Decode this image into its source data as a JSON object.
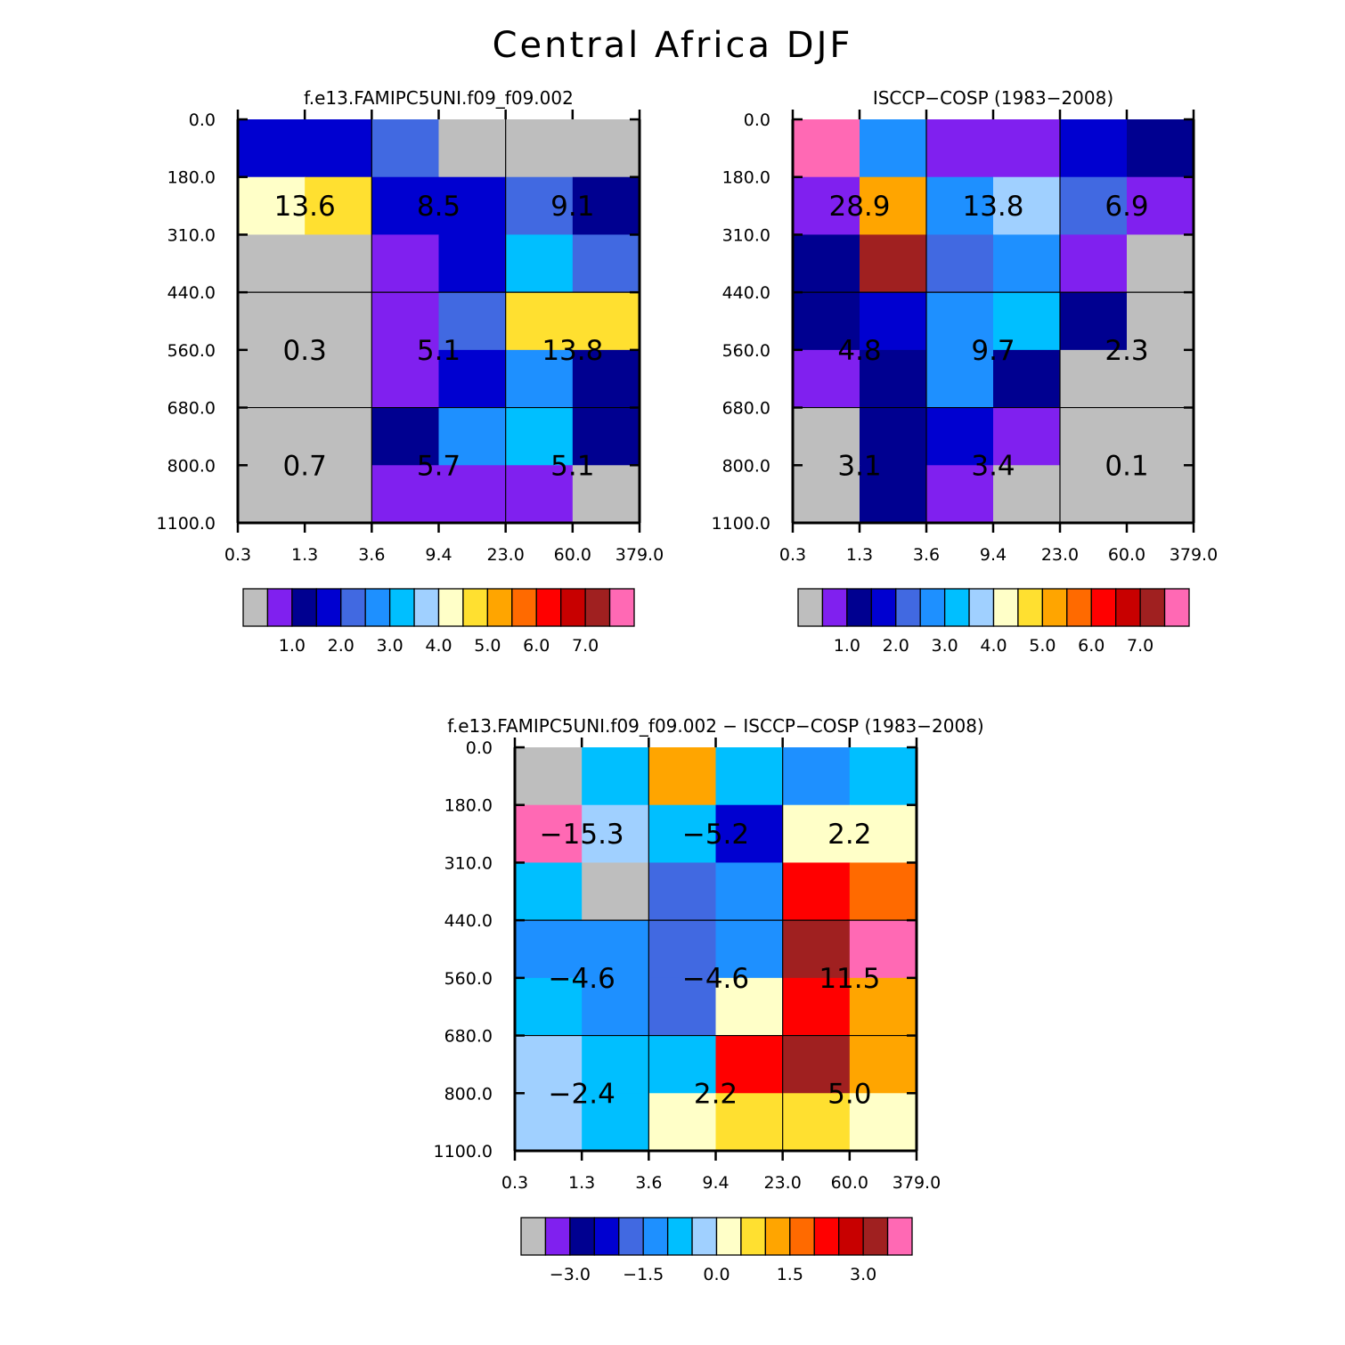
{
  "title": "Central Africa DJF",
  "colors": {
    "palette": [
      "#bebebe",
      "#8020ef",
      "#000090",
      "#0000d0",
      "#4169e1",
      "#1e90ff",
      "#00bfff",
      "#a0d0ff",
      "#ffffc8",
      "#ffe030",
      "#ffa500",
      "#ff6a00",
      "#ff0000",
      "#c80000",
      "#a02020",
      "#ff69b4"
    ]
  },
  "chart_data": [
    {
      "type": "heatmap",
      "id": "model",
      "title": "f.e13.FAMIPC5UNI.f09_f09.002",
      "xlabel": "",
      "ylabel": "",
      "x_ticks": [
        "0.3",
        "1.3",
        "3.6",
        "9.4",
        "23.0",
        "60.0",
        "379.0"
      ],
      "y_ticks": [
        "0.0",
        "180.0",
        "310.0",
        "440.0",
        "560.0",
        "680.0",
        "800.0",
        "1100.0"
      ],
      "cell_color_index": [
        [
          3,
          3,
          4,
          0,
          0,
          0
        ],
        [
          8,
          9,
          3,
          3,
          4,
          2
        ],
        [
          0,
          0,
          1,
          3,
          6,
          4
        ],
        [
          0,
          0,
          1,
          4,
          9,
          9
        ],
        [
          0,
          0,
          1,
          3,
          5,
          2
        ],
        [
          0,
          0,
          2,
          5,
          6,
          2
        ],
        [
          0,
          0,
          1,
          1,
          1,
          0
        ]
      ],
      "block_labels": [
        [
          "13.6",
          "8.5",
          "9.1"
        ],
        [
          "0.3",
          "5.1",
          "13.8"
        ],
        [
          "0.7",
          "5.7",
          "5.1"
        ]
      ],
      "colorbar_labels": [
        "1.0",
        "2.0",
        "3.0",
        "4.0",
        "5.0",
        "6.0",
        "7.0"
      ]
    },
    {
      "type": "heatmap",
      "id": "obs",
      "title": "ISCCP-COSP (1983-2008)",
      "xlabel": "",
      "ylabel": "",
      "x_ticks": [
        "0.3",
        "1.3",
        "3.6",
        "9.4",
        "23.0",
        "60.0",
        "379.0"
      ],
      "y_ticks": [
        "0.0",
        "180.0",
        "310.0",
        "440.0",
        "560.0",
        "680.0",
        "800.0",
        "1100.0"
      ],
      "cell_color_index": [
        [
          15,
          5,
          1,
          1,
          3,
          2
        ],
        [
          1,
          10,
          5,
          7,
          4,
          1
        ],
        [
          2,
          14,
          4,
          5,
          1,
          0
        ],
        [
          2,
          3,
          5,
          6,
          2,
          0
        ],
        [
          1,
          2,
          5,
          2,
          0,
          0
        ],
        [
          0,
          2,
          3,
          1,
          0,
          0
        ],
        [
          0,
          2,
          1,
          0,
          0,
          0
        ]
      ],
      "block_labels": [
        [
          "28.9",
          "13.8",
          "6.9"
        ],
        [
          "4.8",
          "9.7",
          "2.3"
        ],
        [
          "3.1",
          "3.4",
          "0.1"
        ]
      ],
      "colorbar_labels": [
        "1.0",
        "2.0",
        "3.0",
        "4.0",
        "5.0",
        "6.0",
        "7.0"
      ]
    },
    {
      "type": "heatmap",
      "id": "diff",
      "title": "f.e13.FAMIPC5UNI.f09_f09.002 - ISCCP-COSP (1983-2008)",
      "xlabel": "",
      "ylabel": "",
      "x_ticks": [
        "0.3",
        "1.3",
        "3.6",
        "9.4",
        "23.0",
        "60.0",
        "379.0"
      ],
      "y_ticks": [
        "0.0",
        "180.0",
        "310.0",
        "440.0",
        "560.0",
        "680.0",
        "800.0",
        "1100.0"
      ],
      "cell_color_index": [
        [
          0,
          6,
          10,
          6,
          5,
          6
        ],
        [
          15,
          7,
          6,
          3,
          8,
          8
        ],
        [
          6,
          0,
          4,
          5,
          12,
          11
        ],
        [
          5,
          5,
          4,
          5,
          14,
          15
        ],
        [
          6,
          5,
          4,
          8,
          12,
          10
        ],
        [
          7,
          6,
          6,
          12,
          14,
          10
        ],
        [
          7,
          6,
          8,
          9,
          9,
          8
        ]
      ],
      "block_labels": [
        [
          "-15.3",
          "-5.2",
          "2.2"
        ],
        [
          "-4.6",
          "-4.6",
          "11.5"
        ],
        [
          "-2.4",
          "2.2",
          "5.0"
        ]
      ],
      "colorbar_labels": [
        "-3.0",
        "-1.5",
        "0.0",
        "1.5",
        "3.0"
      ]
    }
  ]
}
